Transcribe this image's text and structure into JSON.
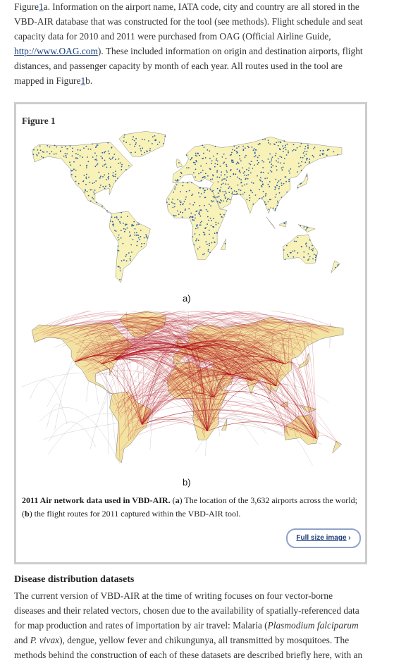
{
  "intro": {
    "segments": [
      "Figure",
      "1",
      "a. Information on the airport name, IATA code, city and country are all stored in the VBD-AIR database that was constructed for the tool (see methods). Flight schedule and seat capacity data for 2010 and 2011 were purchased from OAG (Official Airline Guide, ",
      "http://www.OAG.com",
      "). These included information on origin and destination airports, flight distances, and passenger capacity by month of each year. All routes used in the tool are mapped in Figure",
      "1",
      "b."
    ]
  },
  "figure": {
    "title": "Figure 1",
    "panel_a": "a)",
    "panel_b": "b)",
    "caption_bold": "2011 Air network data used in VBD-AIR.",
    "caption": [
      " (",
      "a",
      ") The location of the 3,632 airports across the world; (",
      "b",
      ") the flight routes for 2011 captured within the VBD-AIR tool."
    ],
    "button": "Full size image"
  },
  "section": {
    "heading": "Disease distribution datasets",
    "segments": [
      "The current version of VBD-AIR at the time of writing focuses on four vector-borne diseases and their related vectors, chosen due to the availability of spatially-referenced data for map production and rates of importation by air travel: Malaria (",
      "Plasmodium falciparum",
      " and ",
      "P. vivax",
      "), dengue, yellow fever and chikungunya, all transmitted by mosquitoes. The methods behind the construction of each of these datasets are described briefly here, with an example"
    ]
  }
}
